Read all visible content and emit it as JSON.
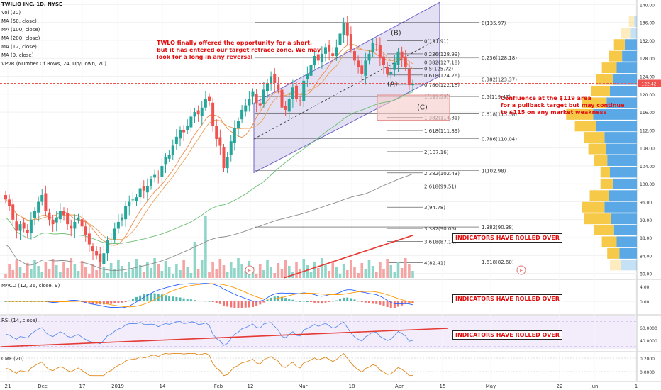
{
  "header": {
    "symbol": "TWILIO INC, 1D, NYSE",
    "studies": [
      "Vol (20)",
      "MA (50, close)",
      "MA (100, close)",
      "MA (200, close)",
      "MA (12, close)",
      "MA (9, close)",
      "VPVR (Number Of Rows, 24, Up/Down, 70)"
    ]
  },
  "panes": {
    "macd": "MACD (12, 26, close, 9)",
    "rsi": "RSI (14, close)",
    "cmf": "CMF (20)"
  },
  "annotations": {
    "short_note": "TWLO finally offered the opportunity for a short,\nbut it has entered our target retrace zone. We may\nlook for a long in any reversal",
    "confluence_note": "Confluence at the $119 area\nfor a pullback target but may continue\nto $115 on any market weakness",
    "rolled_over": "INDICATORS HAVE ROLLED OVER",
    "wave_a": "(A)",
    "wave_b": "(B)",
    "wave_c": "(C)",
    "earnings": "E"
  },
  "colors": {
    "up": "#26a69a",
    "down": "#ef5350",
    "annotation": "#e01010",
    "channel": "#9c8fd6",
    "vol_up": "#8fd6c8",
    "vol_down": "#f5a3a3",
    "vpvr_up": "#5aa9e6",
    "vpvr_down": "#f7c948"
  },
  "chart_data": [
    {
      "type": "candlestick",
      "title": "TWILIO INC, 1D, NYSE",
      "x_ticks": [
        "21",
        "Dec",
        "17",
        "2019",
        "14",
        "Feb",
        "12",
        "Mar",
        "18",
        "Apr",
        "15",
        "May",
        "22",
        "Jun",
        "1"
      ],
      "y_ticks": [
        "140.00",
        "136.00",
        "132.00",
        "128.00",
        "124.00",
        "120.00",
        "116.00",
        "112.00",
        "108.00",
        "104.00",
        "100.00",
        "96.00",
        "92.00",
        "88.00",
        "84.00",
        "80.00"
      ],
      "ylim": [
        79,
        141
      ],
      "last_price": "122.42",
      "fib_retracement_levels": [
        "0(135.97)",
        "0.236(128.18)",
        "0.382(123.37)",
        "0.5(119.47)",
        "0.618(115.58)",
        "0.786(110.04)",
        "1(102.98)",
        "1.382(90.38)",
        "1.618(82.60)"
      ],
      "fib_extension_levels": [
        "0(131.91)",
        "0.236(128.99)",
        "0.382(127.18)",
        "0.5(125.72)",
        "0.618(124.26)",
        "0.786(122.18)",
        "1(119.53)",
        "1.382(114.81)",
        "1.618(111.89)",
        "2(107.16)",
        "2.382(102.43)",
        "2.618(99.51)",
        "3(94.78)",
        "3.382(90.06)",
        "3.618(87.14)",
        "4(82.41)"
      ],
      "close": [
        96.5,
        95.0,
        92.0,
        89.5,
        91.0,
        90.0,
        89.0,
        92.0,
        94.0,
        96.0,
        97.5,
        94.0,
        92.0,
        91.0,
        92.5,
        94.0,
        93.0,
        91.0,
        90.0,
        91.5,
        92.5,
        90.5,
        88.5,
        86.5,
        85.0,
        84.0,
        82.5,
        84.5,
        87.5,
        88.0,
        90.0,
        91.5,
        92.5,
        95.0,
        96.0,
        96.5,
        97.0,
        99.0,
        98.5,
        99.5,
        101.0,
        102.0,
        101.5,
        104.0,
        106.0,
        106.5,
        108.5,
        110.5,
        112.0,
        111.5,
        113.0,
        115.0,
        116.0,
        115.5,
        117.0,
        119.0,
        118.5,
        113.0,
        110.0,
        108.5,
        103.5,
        106.0,
        109.5,
        112.5,
        114.0,
        116.5,
        117.5,
        119.0,
        120.5,
        118.0,
        117.5,
        121.0,
        122.5,
        124.0,
        122.5,
        121.0,
        117.0,
        116.5,
        119.0,
        121.5,
        119.0,
        118.5,
        123.0,
        124.5,
        126.5,
        128.5,
        127.5,
        129.0,
        130.5,
        129.5,
        128.5,
        130.5,
        133.5,
        136.0,
        133.0,
        130.0,
        127.5,
        126.0,
        124.5,
        127.5,
        129.0,
        131.5,
        131.0,
        128.0,
        126.5,
        124.5,
        125.0,
        127.0,
        129.5,
        128.0,
        126.0,
        122.0,
        122.4
      ]
    },
    {
      "type": "bar",
      "name": "Vol (20)"
    },
    {
      "type": "bar",
      "name": "VPVR (Number Of Rows, 24, Up/Down, 70)",
      "y_price_centers": [
        138.7,
        136.1,
        133.5,
        131.0,
        128.4,
        125.8,
        123.2,
        120.6,
        118.0,
        115.4,
        112.8,
        110.3,
        107.7,
        105.1,
        102.5,
        99.9,
        97.3,
        94.7,
        92.1,
        89.6,
        87.0,
        84.4,
        81.8,
        79.2
      ],
      "up_volume": [
        0,
        4,
        10,
        18,
        22,
        30,
        36,
        40,
        45,
        65,
        60,
        48,
        46,
        44,
        40,
        36,
        42,
        48,
        38,
        34,
        30,
        26,
        24,
        0
      ],
      "down_volume": [
        0,
        8,
        14,
        16,
        20,
        22,
        24,
        28,
        36,
        40,
        32,
        30,
        26,
        20,
        14,
        18,
        28,
        34,
        40,
        30,
        22,
        18,
        16,
        0
      ]
    },
    {
      "type": "line",
      "name": "MACD (12, 26, close, 9)",
      "y_ticks": [
        "4.00",
        "0.00"
      ]
    },
    {
      "type": "line",
      "name": "RSI (14, close)",
      "y_ticks": [
        "60.0000",
        "40.0000"
      ]
    },
    {
      "type": "line",
      "name": "CMF (20)",
      "y_ticks": [
        "0.2000",
        "0.0000"
      ]
    }
  ]
}
